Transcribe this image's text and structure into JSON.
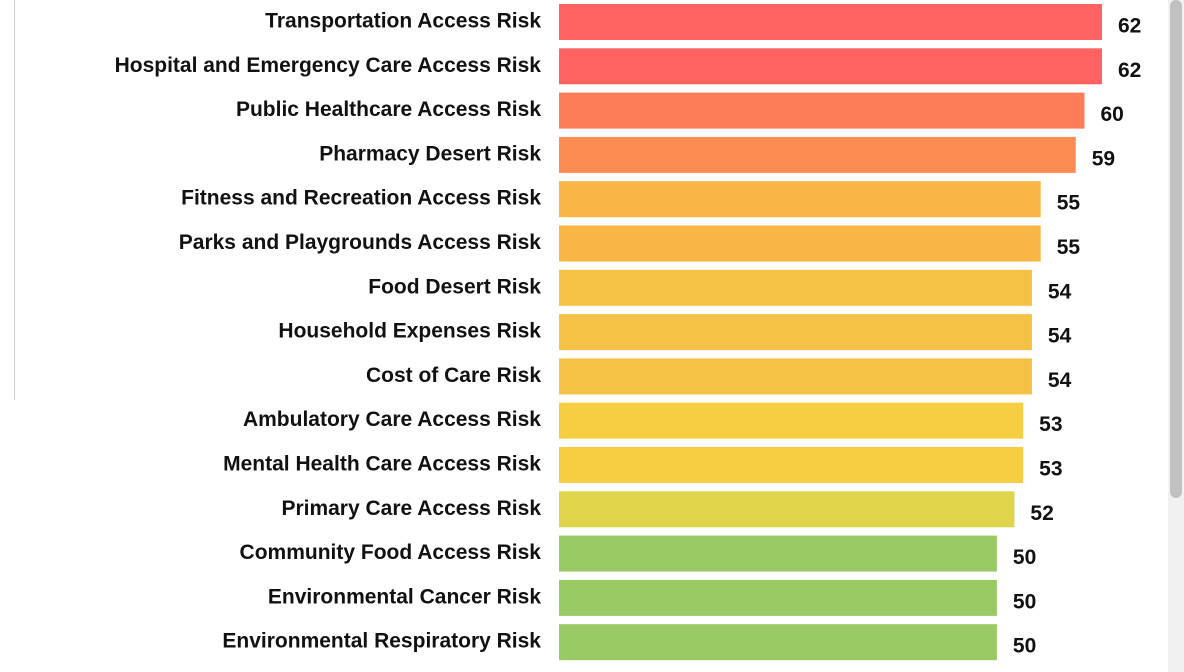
{
  "chart_data": {
    "type": "bar",
    "orientation": "horizontal",
    "categories": [
      "Transportation Access Risk",
      "Hospital and Emergency Care Access Risk",
      "Public Healthcare Access Risk",
      "Pharmacy Desert Risk",
      "Fitness and Recreation Access Risk",
      "Parks and Playgrounds Access Risk",
      "Food Desert Risk",
      "Household Expenses Risk",
      "Cost of Care Risk",
      "Ambulatory Care Access Risk",
      "Mental Health Care Access Risk",
      "Primary Care Access Risk",
      "Community Food Access Risk",
      "Environmental Cancer Risk",
      "Environmental Respiratory Risk"
    ],
    "values": [
      62,
      62,
      60,
      59,
      55,
      55,
      54,
      54,
      54,
      53,
      53,
      52,
      50,
      50,
      50
    ],
    "colors": [
      "#ff6361",
      "#ff6361",
      "#fe7d58",
      "#fc8c52",
      "#f7b646",
      "#f7b646",
      "#f6c245",
      "#f6c245",
      "#f6c245",
      "#f5ce42",
      "#f5ce42",
      "#e0d44a",
      "#9aca65",
      "#9aca65",
      "#9aca65"
    ]
  }
}
